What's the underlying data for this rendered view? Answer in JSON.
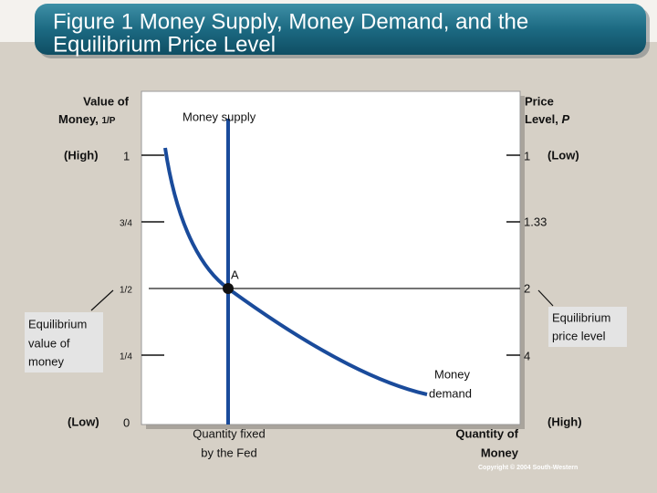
{
  "title": [
    "Figure 1 Money Supply, Money Demand, and the",
    "Equilibrium Price Level"
  ],
  "left_axis": {
    "label": [
      "Value of",
      "Money,",
      "1/P"
    ],
    "high": "(High)",
    "low": "(Low)",
    "ticks": [
      "1",
      "3/4",
      "1/2",
      "1/4",
      "0"
    ]
  },
  "right_axis": {
    "label": [
      "Price",
      "Level,",
      "P"
    ],
    "low": "(Low)",
    "high": "(High)",
    "ticks": [
      "1",
      "1.33",
      "2",
      "4"
    ]
  },
  "money_supply": "Money supply",
  "point": "A",
  "money_demand": [
    "Money",
    "demand"
  ],
  "quantity_fixed": [
    "Quantity fixed",
    "by the Fed"
  ],
  "x_axis_label": [
    "Quantity of",
    "Money"
  ],
  "callouts": {
    "left": [
      "Equilibrium",
      "value of",
      "money"
    ],
    "right": [
      "Equilibrium",
      "price level"
    ]
  },
  "copyright": "Copyright © 2004  South-Western"
}
